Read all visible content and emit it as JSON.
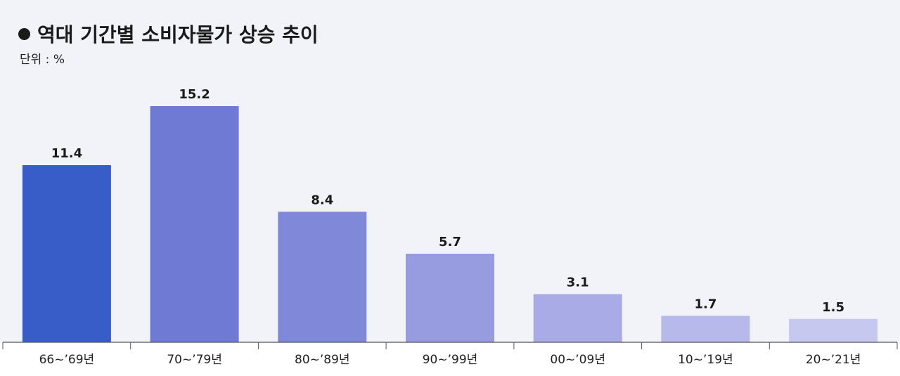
{
  "chart_data": {
    "type": "bar",
    "title": "역대 기간별 소비자물가 상승 추이",
    "unit_label": "단위 : %",
    "categories": [
      "66~’69년",
      "70~’79년",
      "80~’89년",
      "90~’99년",
      "00~’09년",
      "10~’19년",
      "20~’21년"
    ],
    "values": [
      11.4,
      15.2,
      8.4,
      5.7,
      3.1,
      1.7,
      1.5
    ],
    "value_labels": [
      "11.4",
      "15.2",
      "8.4",
      "5.7",
      "3.1",
      "1.7",
      "1.5"
    ],
    "colors": [
      "#385dc9",
      "#6e7ad4",
      "#8088da",
      "#979be0",
      "#a8abe5",
      "#b7b9ea",
      "#c6c8ef"
    ],
    "ylim": [
      0,
      15.2
    ],
    "grid": false,
    "legend": "none"
  }
}
